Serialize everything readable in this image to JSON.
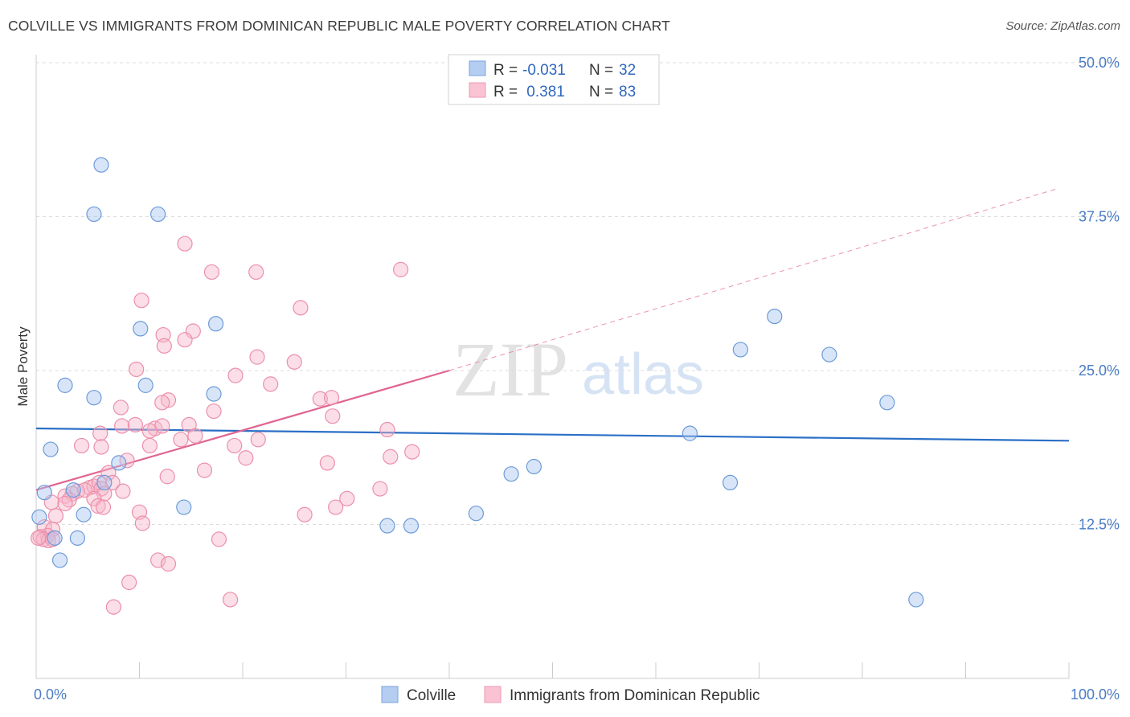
{
  "title": "COLVILLE VS IMMIGRANTS FROM DOMINICAN REPUBLIC MALE POVERTY CORRELATION CHART",
  "source": "Source: ZipAtlas.com",
  "watermark": {
    "zip": "ZIP",
    "atlas": "atlas"
  },
  "chart_data": {
    "type": "scatter",
    "title": "COLVILLE VS IMMIGRANTS FROM DOMINICAN REPUBLIC MALE POVERTY CORRELATION CHART",
    "xlabel": "",
    "ylabel": "Male Poverty",
    "xlim": [
      0,
      100
    ],
    "ylim": [
      0,
      50
    ],
    "x_tick_labels": [
      "0.0%",
      "100.0%"
    ],
    "y_ticks": [
      12.5,
      25.0,
      37.5,
      50.0
    ],
    "y_tick_labels": [
      "12.5%",
      "25.0%",
      "37.5%",
      "50.0%"
    ],
    "grid": true,
    "legend_position": "top-center",
    "legend": [
      {
        "r_label": "R =",
        "r_value": "-0.031",
        "n_label": "N =",
        "n_value": "32"
      },
      {
        "r_label": "R =",
        "r_value": " 0.381",
        "n_label": "N =",
        "n_value": "83"
      }
    ],
    "series": [
      {
        "name": "Colville",
        "color": "#a9c6ef",
        "stroke": "#6c9bd8",
        "trend_color": "#2b6fc6",
        "trend": {
          "x": [
            0,
            100
          ],
          "y": [
            20.3,
            19.3
          ]
        },
        "points": [
          [
            6.3,
            41.7
          ],
          [
            5.6,
            37.7
          ],
          [
            11.8,
            37.7
          ],
          [
            17.4,
            28.8
          ],
          [
            10.1,
            28.4
          ],
          [
            2.8,
            23.8
          ],
          [
            5.6,
            22.8
          ],
          [
            10.6,
            23.8
          ],
          [
            17.2,
            23.1
          ],
          [
            1.4,
            18.6
          ],
          [
            8.0,
            17.5
          ],
          [
            6.6,
            15.9
          ],
          [
            0.8,
            15.1
          ],
          [
            3.6,
            15.3
          ],
          [
            0.3,
            13.1
          ],
          [
            4.6,
            13.3
          ],
          [
            14.3,
            13.9
          ],
          [
            1.8,
            11.4
          ],
          [
            4.0,
            11.4
          ],
          [
            2.3,
            9.6
          ],
          [
            68.2,
            26.7
          ],
          [
            71.5,
            29.4
          ],
          [
            76.8,
            26.3
          ],
          [
            82.4,
            22.4
          ],
          [
            63.3,
            19.9
          ],
          [
            48.2,
            17.2
          ],
          [
            46.0,
            16.6
          ],
          [
            67.2,
            15.9
          ],
          [
            42.6,
            13.4
          ],
          [
            34.0,
            12.4
          ],
          [
            36.3,
            12.4
          ],
          [
            85.2,
            6.4
          ]
        ]
      },
      {
        "name": "Immigrants from Dominican Republic",
        "color": "#f7b6c9",
        "stroke": "#ec8fab",
        "trend_color": "#e06592",
        "trend": {
          "x": [
            0,
            40
          ],
          "y": [
            15.3,
            25.0
          ]
        },
        "trend_extension": {
          "x": [
            40,
            99
          ],
          "y": [
            25.0,
            39.8
          ]
        },
        "points": [
          [
            14.4,
            35.3
          ],
          [
            17.0,
            33.0
          ],
          [
            21.3,
            33.0
          ],
          [
            35.3,
            33.2
          ],
          [
            10.2,
            30.7
          ],
          [
            25.6,
            30.1
          ],
          [
            12.3,
            27.9
          ],
          [
            15.2,
            28.2
          ],
          [
            12.4,
            27.0
          ],
          [
            14.4,
            27.5
          ],
          [
            21.4,
            26.1
          ],
          [
            25.0,
            25.7
          ],
          [
            9.7,
            25.1
          ],
          [
            19.3,
            24.6
          ],
          [
            22.7,
            23.9
          ],
          [
            12.8,
            22.6
          ],
          [
            12.2,
            22.4
          ],
          [
            27.5,
            22.7
          ],
          [
            28.6,
            22.8
          ],
          [
            8.2,
            22.0
          ],
          [
            17.2,
            21.7
          ],
          [
            28.7,
            21.3
          ],
          [
            8.3,
            20.5
          ],
          [
            9.6,
            20.6
          ],
          [
            11.5,
            20.3
          ],
          [
            12.2,
            20.5
          ],
          [
            14.8,
            20.6
          ],
          [
            34.0,
            20.2
          ],
          [
            15.4,
            19.7
          ],
          [
            6.2,
            19.9
          ],
          [
            11.0,
            20.1
          ],
          [
            14.0,
            19.4
          ],
          [
            21.5,
            19.4
          ],
          [
            4.4,
            18.9
          ],
          [
            6.3,
            18.8
          ],
          [
            11.0,
            18.9
          ],
          [
            19.2,
            18.9
          ],
          [
            20.3,
            17.9
          ],
          [
            36.4,
            18.4
          ],
          [
            34.3,
            18.0
          ],
          [
            28.2,
            17.5
          ],
          [
            8.8,
            17.7
          ],
          [
            16.3,
            16.9
          ],
          [
            7.0,
            16.7
          ],
          [
            12.7,
            16.4
          ],
          [
            7.4,
            15.9
          ],
          [
            5.2,
            15.5
          ],
          [
            5.6,
            15.6
          ],
          [
            6.1,
            15.9
          ],
          [
            6.3,
            15.4
          ],
          [
            4.0,
            15.2
          ],
          [
            3.5,
            15.0
          ],
          [
            4.7,
            15.3
          ],
          [
            8.4,
            15.2
          ],
          [
            6.6,
            15.0
          ],
          [
            33.3,
            15.4
          ],
          [
            2.8,
            14.8
          ],
          [
            3.2,
            14.5
          ],
          [
            5.6,
            14.6
          ],
          [
            6.0,
            14.0
          ],
          [
            6.5,
            13.9
          ],
          [
            1.5,
            14.3
          ],
          [
            2.8,
            14.2
          ],
          [
            30.1,
            14.6
          ],
          [
            29.0,
            13.9
          ],
          [
            10.0,
            13.5
          ],
          [
            26.0,
            13.3
          ],
          [
            1.9,
            13.2
          ],
          [
            10.3,
            12.6
          ],
          [
            0.8,
            12.3
          ],
          [
            1.6,
            12.1
          ],
          [
            1.1,
            11.6
          ],
          [
            0.4,
            11.5
          ],
          [
            0.7,
            11.3
          ],
          [
            1.2,
            11.2
          ],
          [
            1.6,
            11.3
          ],
          [
            17.7,
            11.3
          ],
          [
            11.8,
            9.6
          ],
          [
            12.8,
            9.3
          ],
          [
            9.0,
            7.8
          ],
          [
            18.8,
            6.4
          ],
          [
            7.5,
            5.8
          ],
          [
            0.2,
            11.4
          ]
        ]
      }
    ]
  }
}
